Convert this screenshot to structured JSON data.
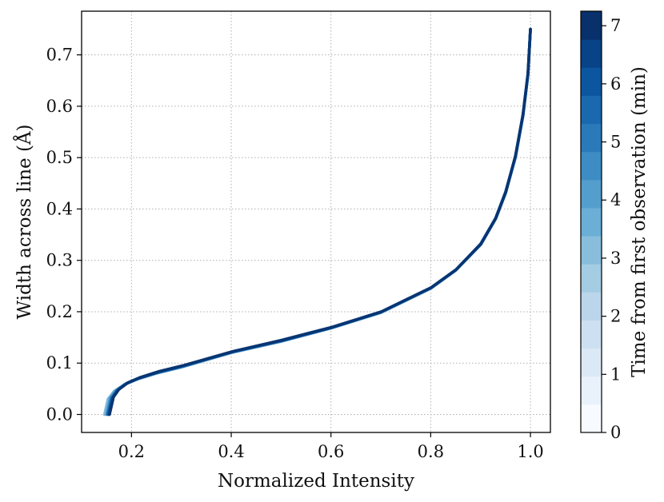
{
  "chart_data": {
    "type": "line",
    "xlabel": "Normalized Intensity",
    "ylabel": "Width across line (Å)",
    "xlim": [
      0.1,
      1.04
    ],
    "ylim": [
      -0.035,
      0.785
    ],
    "xticks": [
      0.2,
      0.4,
      0.6,
      0.8,
      1.0
    ],
    "xtick_labels": [
      "0.2",
      "0.4",
      "0.6",
      "0.8",
      "1.0"
    ],
    "yticks": [
      0.0,
      0.1,
      0.2,
      0.3,
      0.4,
      0.5,
      0.6,
      0.7
    ],
    "ytick_labels": [
      "0.0",
      "0.1",
      "0.2",
      "0.3",
      "0.4",
      "0.5",
      "0.6",
      "0.7"
    ],
    "grid": true,
    "grid_style": "dotted",
    "colorbar": {
      "label": "Time from first observation (min)",
      "ticks": [
        0,
        1,
        2,
        3,
        4,
        5,
        6,
        7
      ],
      "tick_labels": [
        "0",
        "1",
        "2",
        "3",
        "4",
        "5",
        "6",
        "7"
      ],
      "range": [
        0,
        7.25
      ],
      "colormap": "Blues",
      "levels": 15
    },
    "series": [
      {
        "time": 0.0,
        "x": [
          0.146,
          0.153,
          0.165,
          0.185,
          0.21,
          0.25,
          0.3,
          0.4,
          0.5,
          0.6,
          0.7,
          0.8,
          0.85,
          0.9,
          0.93,
          0.95,
          0.97,
          0.985,
          0.995,
          1.0
        ],
        "y": [
          0.0,
          0.03,
          0.045,
          0.058,
          0.068,
          0.08,
          0.092,
          0.12,
          0.142,
          0.168,
          0.198,
          0.245,
          0.28,
          0.33,
          0.38,
          0.43,
          0.5,
          0.58,
          0.66,
          0.75
        ]
      },
      {
        "time": 2.0,
        "x": [
          0.15,
          0.157,
          0.168,
          0.187,
          0.212,
          0.252,
          0.302,
          0.401,
          0.5,
          0.6,
          0.7,
          0.8,
          0.85,
          0.9,
          0.93,
          0.95,
          0.97,
          0.985,
          0.995,
          1.0
        ],
        "y": [
          0.0,
          0.031,
          0.046,
          0.059,
          0.069,
          0.081,
          0.093,
          0.121,
          0.143,
          0.168,
          0.199,
          0.246,
          0.281,
          0.331,
          0.381,
          0.431,
          0.501,
          0.581,
          0.661,
          0.75
        ]
      },
      {
        "time": 4.0,
        "x": [
          0.152,
          0.16,
          0.171,
          0.19,
          0.214,
          0.254,
          0.304,
          0.402,
          0.501,
          0.601,
          0.7,
          0.8,
          0.85,
          0.9,
          0.93,
          0.95,
          0.97,
          0.985,
          0.995,
          1.0
        ],
        "y": [
          0.0,
          0.032,
          0.047,
          0.06,
          0.07,
          0.082,
          0.094,
          0.122,
          0.143,
          0.169,
          0.199,
          0.246,
          0.281,
          0.331,
          0.381,
          0.432,
          0.502,
          0.582,
          0.662,
          0.75
        ]
      },
      {
        "time": 5.5,
        "x": [
          0.154,
          0.162,
          0.173,
          0.191,
          0.215,
          0.255,
          0.305,
          0.403,
          0.501,
          0.601,
          0.701,
          0.801,
          0.851,
          0.9,
          0.93,
          0.95,
          0.97,
          0.985,
          0.995,
          1.0
        ],
        "y": [
          0.0,
          0.033,
          0.048,
          0.061,
          0.071,
          0.083,
          0.095,
          0.122,
          0.144,
          0.169,
          0.2,
          0.247,
          0.282,
          0.332,
          0.382,
          0.433,
          0.503,
          0.583,
          0.663,
          0.75
        ]
      },
      {
        "time": 7.0,
        "x": [
          0.156,
          0.164,
          0.175,
          0.193,
          0.217,
          0.256,
          0.306,
          0.404,
          0.502,
          0.602,
          0.701,
          0.801,
          0.851,
          0.901,
          0.931,
          0.951,
          0.97,
          0.985,
          0.995,
          1.0
        ],
        "y": [
          0.0,
          0.034,
          0.049,
          0.062,
          0.072,
          0.084,
          0.096,
          0.123,
          0.145,
          0.17,
          0.2,
          0.247,
          0.282,
          0.332,
          0.383,
          0.434,
          0.504,
          0.584,
          0.664,
          0.75
        ]
      }
    ]
  }
}
